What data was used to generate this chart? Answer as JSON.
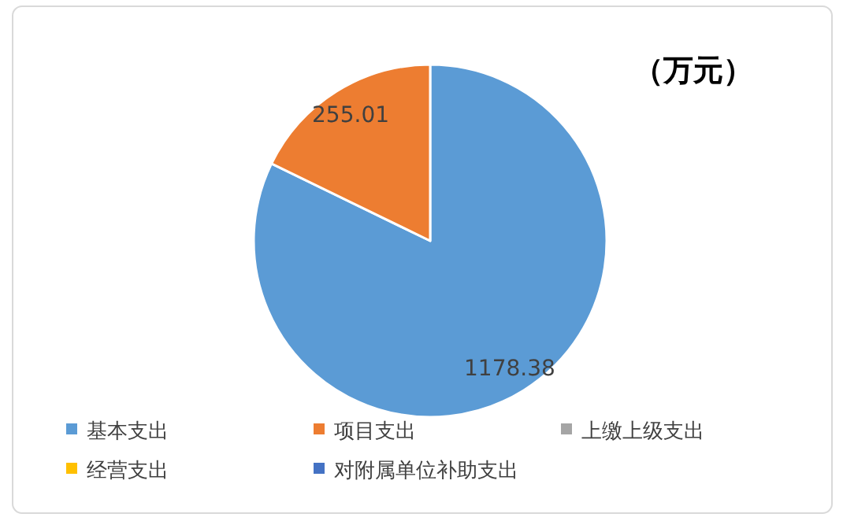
{
  "chart_data": {
    "type": "pie",
    "title": "（万元）",
    "categories": [
      "基本支出",
      "项目支出",
      "上缴上级支出",
      "经营支出",
      "对附属单位补助支出"
    ],
    "values": [
      1178.38,
      255.01,
      0,
      0,
      0
    ],
    "colors": [
      "#5b9bd5",
      "#ed7d31",
      "#a5a5a5",
      "#ffc000",
      "#4472c4"
    ],
    "data_labels": true,
    "legend": "bottom"
  }
}
